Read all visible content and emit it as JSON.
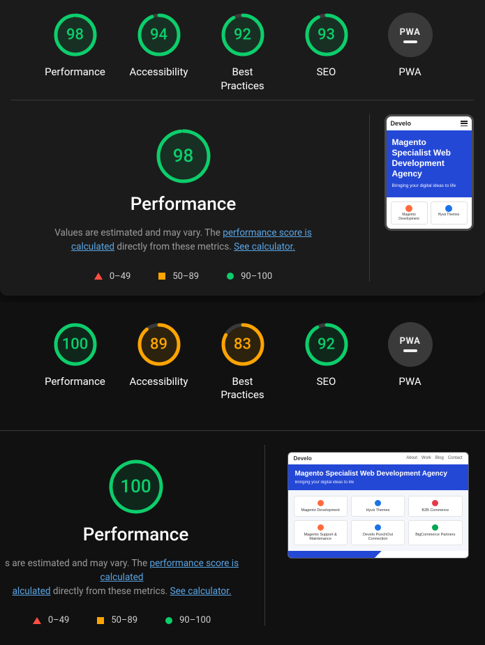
{
  "colors": {
    "green": "#0cce6b",
    "orange": "#ffa400",
    "red": "#ff4e42",
    "green_fill": "rgba(12,206,107,0.12)",
    "orange_fill": "rgba(255,164,0,0.12)",
    "arc_bg": "#3a3a3a"
  },
  "report1": {
    "gauges": [
      {
        "score": 98,
        "label": "Performance",
        "level": "green"
      },
      {
        "score": 94,
        "label": "Accessibility",
        "level": "green"
      },
      {
        "score": 92,
        "label": "Best Practices",
        "level": "green"
      },
      {
        "score": 93,
        "label": "SEO",
        "level": "green"
      }
    ],
    "pwa_label": "PWA",
    "perf": {
      "score": 98,
      "level": "green",
      "title": "Performance",
      "desc_prefix": "Values are estimated and may vary. The ",
      "link1": "performance score is calculated",
      "desc_mid": " directly from these metrics. ",
      "link2": "See calculator."
    },
    "legend": {
      "r": "0–49",
      "o": "50–89",
      "g": "90–100"
    },
    "preview": {
      "brand": "Develo",
      "hero_title": "Magento Specialist Web Development Agency",
      "hero_sub": "Bringing your digital ideas to life",
      "card1": "Magento Development",
      "card2": "Hyvä Themes",
      "card1_color": "#ff6a3d",
      "card2_color": "#1a73e8"
    }
  },
  "report2": {
    "gauges": [
      {
        "score": 100,
        "label": "Performance",
        "level": "green"
      },
      {
        "score": 89,
        "label": "Accessibility",
        "level": "orange"
      },
      {
        "score": 83,
        "label": "Best Practices",
        "level": "orange"
      },
      {
        "score": 92,
        "label": "SEO",
        "level": "green"
      }
    ],
    "pwa_label": "PWA",
    "perf": {
      "score": 100,
      "level": "green",
      "title": "Performance",
      "desc_prefix": "s are estimated and may vary. The ",
      "link1": "performance score is calculated",
      "desc_mid_cut": "alculated",
      "desc_mid_rest": " directly from these metrics. ",
      "link2": "See calculator."
    },
    "legend": {
      "r": "0–49",
      "o": "50–89",
      "g": "90–100"
    },
    "preview": {
      "brand": "Develo",
      "hero_title": "Magento Specialist Web Development Agency",
      "hero_sub": "Bringing your digital ideas to life",
      "cards": [
        {
          "label": "Magento Development",
          "color": "#ff6a3d"
        },
        {
          "label": "Hyvä Themes",
          "color": "#1a73e8"
        },
        {
          "label": "B2B Commerce",
          "color": "#e63946"
        },
        {
          "label": "Magento Support & Maintenance",
          "color": "#ff6a3d"
        },
        {
          "label": "Develo PunchOut Connection",
          "color": "#1a73e8"
        },
        {
          "label": "BigCommerce Partners",
          "color": "#00a651"
        }
      ]
    }
  }
}
